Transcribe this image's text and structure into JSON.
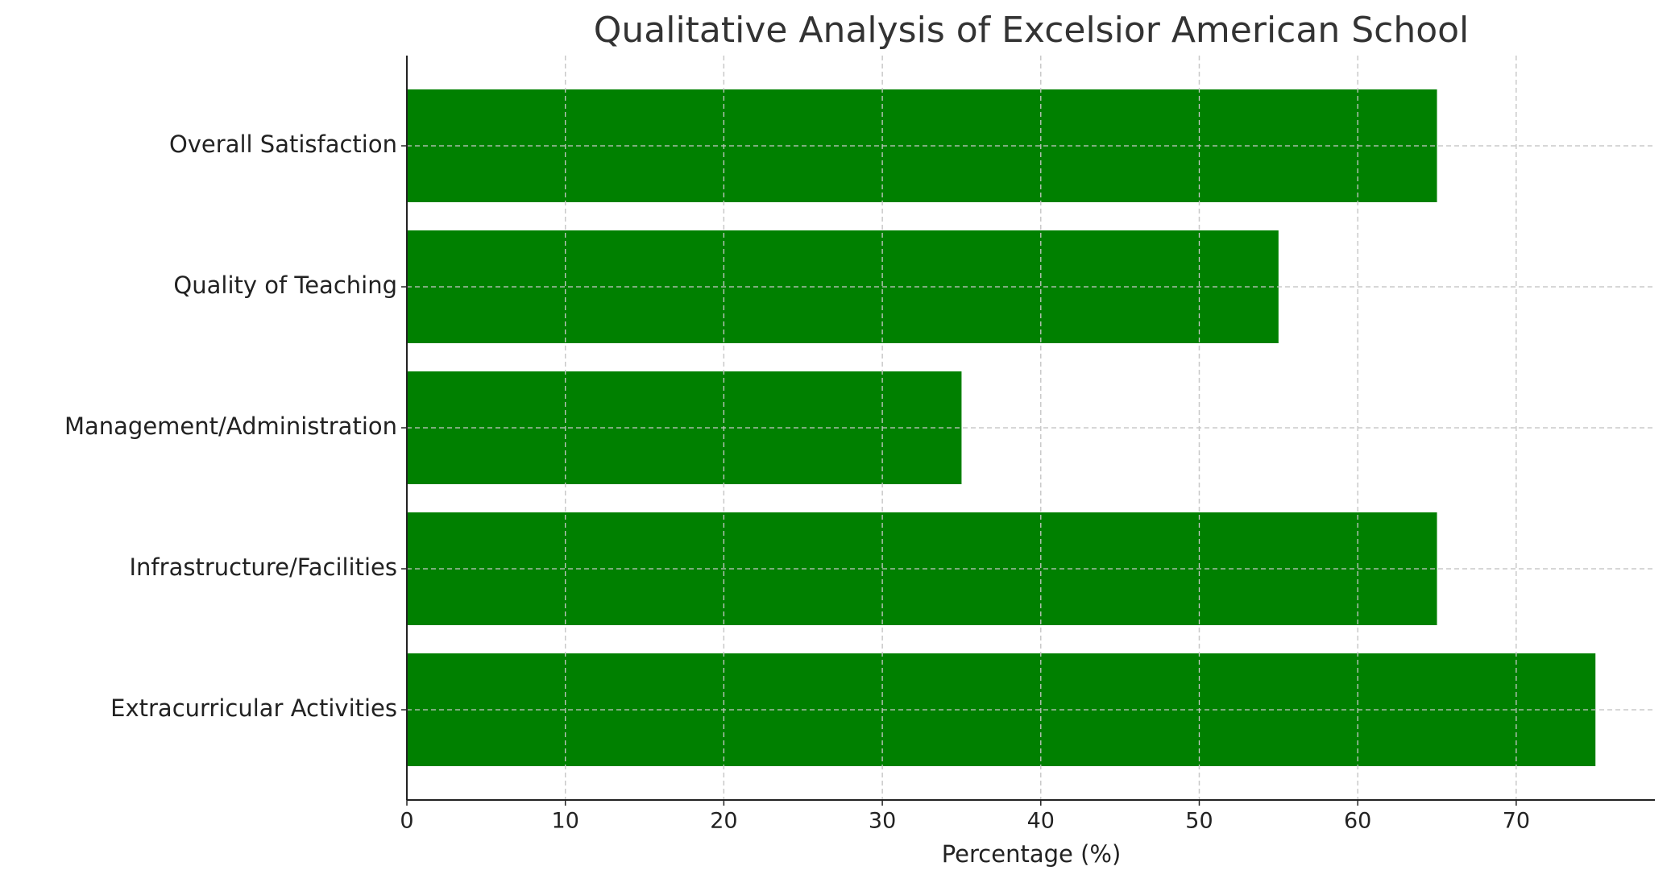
{
  "chart_data": {
    "type": "bar",
    "orientation": "horizontal",
    "title": "Qualitative Analysis of Excelsior American School",
    "x_label": "Percentage (%)",
    "categories": [
      "Overall Satisfaction",
      "Quality of Teaching",
      "Management/Administration",
      "Infrastructure/Facilities",
      "Extracurricular Activities"
    ],
    "values": [
      65,
      55,
      35,
      65,
      75
    ],
    "color": "#008000",
    "xlim": [
      0,
      78.75
    ],
    "xticks": [
      0,
      10,
      20,
      30,
      40,
      50,
      60,
      70
    ],
    "grid": true
  }
}
